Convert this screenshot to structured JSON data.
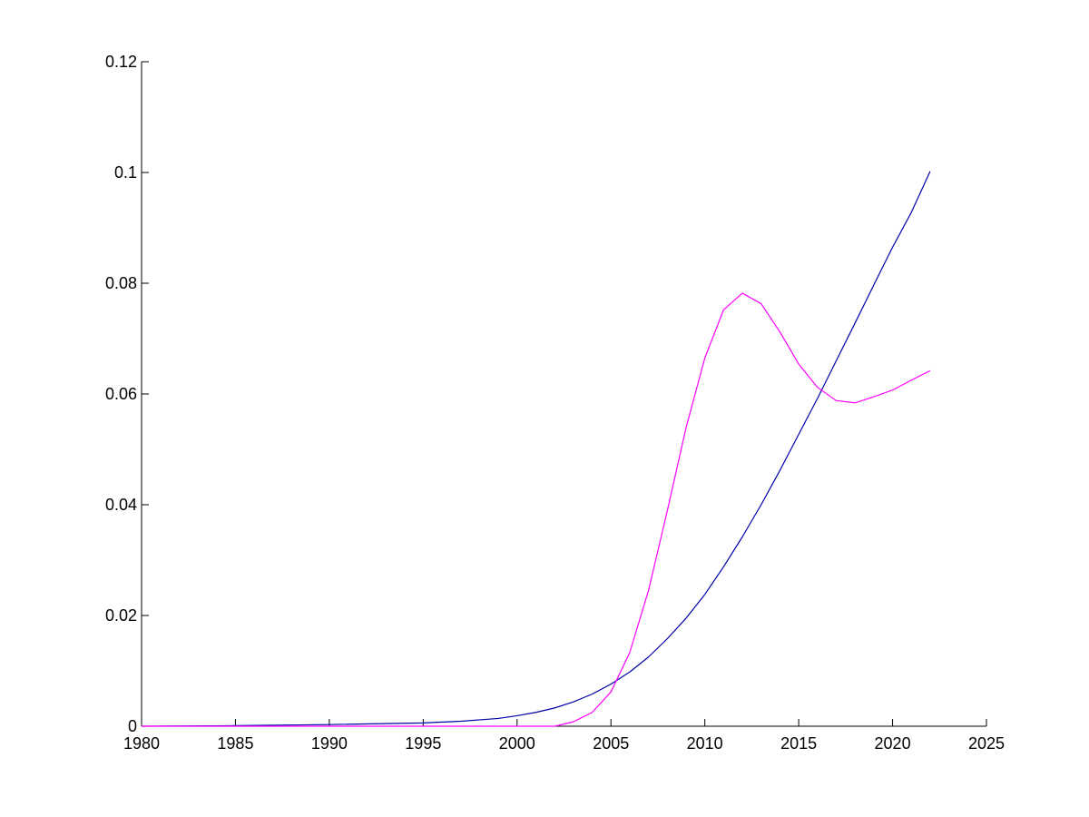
{
  "chart_data": {
    "type": "line",
    "title": "",
    "xlabel": "",
    "ylabel": "",
    "xlim": [
      1980,
      2025
    ],
    "ylim": [
      0,
      0.12
    ],
    "x_ticks": [
      1980,
      1985,
      1990,
      1995,
      2000,
      2005,
      2010,
      2015,
      2020,
      2025
    ],
    "x_tick_labels": [
      "1980",
      "1985",
      "1990",
      "1995",
      "2000",
      "2005",
      "2010",
      "2015",
      "2020",
      "2025"
    ],
    "y_ticks": [
      0,
      0.02,
      0.04,
      0.06,
      0.08,
      0.1,
      0.12
    ],
    "y_tick_labels": [
      "0",
      "0.02",
      "0.04",
      "0.06",
      "0.08",
      "0.1",
      "0.12"
    ],
    "grid": false,
    "legend": "none",
    "series": [
      {
        "color": "#0000aa",
        "x": [
          1980,
          1985,
          1990,
          1995,
          1997,
          1999,
          2000,
          2001,
          2002,
          2003,
          2004,
          2005,
          2006,
          2007,
          2008,
          2009,
          2010,
          2011,
          2012,
          2013,
          2014,
          2015,
          2016,
          2017,
          2018,
          2019,
          2020,
          2021,
          2022
        ],
        "y": [
          0,
          0.0001,
          0.0003,
          0.0006,
          0.0009,
          0.0014,
          0.0019,
          0.0025,
          0.0033,
          0.0044,
          0.0058,
          0.0076,
          0.0098,
          0.0125,
          0.0158,
          0.0195,
          0.0238,
          0.0288,
          0.0342,
          0.04,
          0.0462,
          0.0527,
          0.0592,
          0.066,
          0.0728,
          0.0797,
          0.0865,
          0.0928,
          0.1002
        ]
      },
      {
        "color": "#ff00ff",
        "x": [
          1980,
          1985,
          1990,
          1995,
          2000,
          2002,
          2003,
          2004,
          2005,
          2006,
          2007,
          2008,
          2009,
          2010,
          2011,
          2012,
          2013,
          2014,
          2015,
          2016,
          2017,
          2018,
          2019,
          2020,
          2021,
          2022
        ],
        "y": [
          0,
          0,
          0,
          0,
          0,
          0,
          0.0008,
          0.0025,
          0.0062,
          0.0133,
          0.0245,
          0.0389,
          0.0539,
          0.0665,
          0.0752,
          0.0782,
          0.0763,
          0.0712,
          0.0654,
          0.0612,
          0.0588,
          0.0584,
          0.0595,
          0.0607,
          0.0625,
          0.0642
        ]
      }
    ]
  }
}
